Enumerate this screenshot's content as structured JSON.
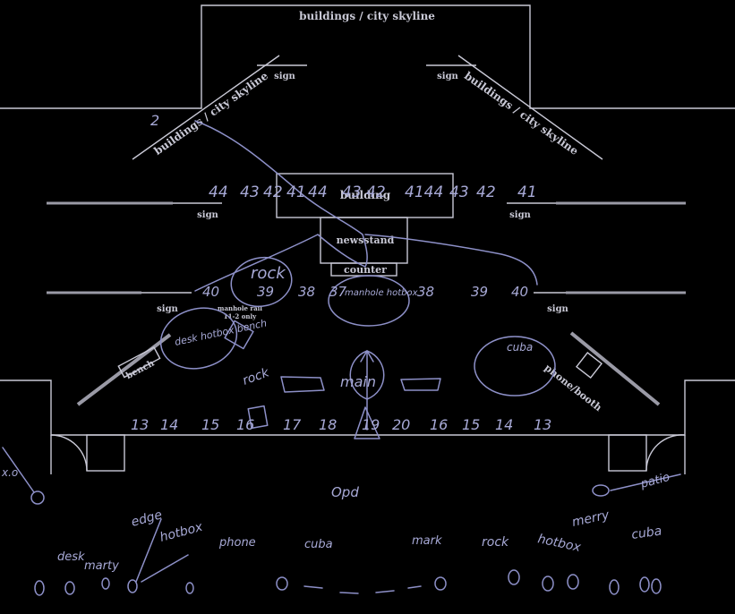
{
  "printed": {
    "top_skyline": "buildings / city skyline",
    "left_skyline": "buildings / city skyline",
    "right_skyline": "buildings / city skyline",
    "sign_top_left": "sign",
    "sign_top_right": "sign",
    "sign_mid_left": "sign",
    "sign_mid_right": "sign",
    "sign_low_left": "sign",
    "sign_low_right": "sign",
    "building": "building",
    "newsstand": "newsstand",
    "counter": "counter",
    "manhole_line1": "manhole rail",
    "manhole_line2": "11-2 only",
    "bench": "bench",
    "phone_booth": "phone/booth"
  },
  "handwritten": {
    "numbers_row1": [
      "44",
      "43",
      "42",
      "41",
      "44",
      "43 42",
      "4144",
      "43",
      "42",
      "41"
    ],
    "numbers_row2": [
      "40",
      "39",
      "38",
      "37",
      "38",
      "39",
      "40"
    ],
    "numbers_row3": [
      "13",
      "14",
      "15",
      "16",
      "17",
      "18",
      "19",
      "20",
      "16",
      "15",
      "14",
      "13"
    ],
    "rock_top": "rock",
    "rock_mid": "rock",
    "desk_note": "desk hotbox bench",
    "cuba_note": "cuba",
    "main_note": "main",
    "manhole_note": "manhole hotbox",
    "opd_note": "Opd",
    "patio_note": "patio",
    "bottom_desk": "desk",
    "bottom_marty": "marty",
    "bottom_edge": "edge",
    "bottom_hotbox": "hotbox",
    "bottom_phone": "phone",
    "bottom_cuba": "cuba",
    "bottom_mark": "mark",
    "bottom_rock": "rock",
    "bottom_hotbox2": "hotbox",
    "bottom_merry": "merry",
    "bottom_cuba2": "cuba",
    "left_edge_note": "x.o",
    "corner_mark": "2"
  },
  "colors": {
    "background": "#000000",
    "print": "#c9c9d6",
    "pen": "#8d90c8"
  }
}
